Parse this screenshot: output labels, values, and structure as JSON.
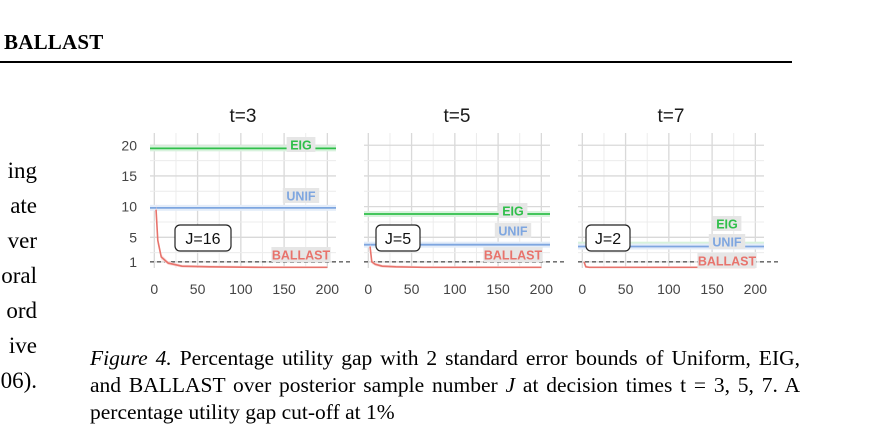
{
  "running_head": "BALLAST",
  "left_column_fragments": [
    "ing",
    "ate",
    "ver",
    "oral",
    "ord",
    "ive",
    "06)."
  ],
  "caption": {
    "label": "Figure 4.",
    "line1": "Percentage utility gap with 2 standard error bounds of",
    "line2_a": "Uniform, EIG, and BALLAST over posterior sample number",
    "line2_var": "J",
    "line2_b": "at",
    "line3": "decision times t = 3, 5, 7. A percentage utility gap cut-off at 1%"
  },
  "colors": {
    "eig": "#2fbf4a",
    "unif": "#7ea6e0",
    "ballast": "#e8736c",
    "grid": "#d9d9d9"
  },
  "chart_data": [
    {
      "type": "line",
      "title": "t=3",
      "x": [
        2,
        4,
        8,
        16,
        32,
        64,
        128,
        200
      ],
      "xticks": [
        0,
        50,
        100,
        150,
        200
      ],
      "yticks": [
        1,
        5,
        10,
        15,
        20
      ],
      "xlim": [
        -5,
        210
      ],
      "ylim": [
        0,
        22
      ],
      "reference_line": 1,
      "annotation": "J=16",
      "series": [
        {
          "name": "EIG",
          "values": [
            19.5,
            19.5,
            19.5,
            19.5,
            19.5,
            19.5,
            19.5,
            19.5
          ]
        },
        {
          "name": "UNIF",
          "values": [
            9.8,
            9.8,
            9.8,
            9.8,
            9.8,
            9.8,
            9.8,
            9.8
          ]
        },
        {
          "name": "BALLAST",
          "values": [
            9.5,
            4.5,
            1.8,
            0.8,
            0.3,
            0.2,
            0.1,
            0.1
          ]
        }
      ]
    },
    {
      "type": "line",
      "title": "t=5",
      "x": [
        2,
        4,
        8,
        16,
        32,
        64,
        128,
        200
      ],
      "xticks": [
        0,
        50,
        100,
        150,
        200
      ],
      "yticks": [
        1,
        5,
        10,
        15,
        20
      ],
      "xlim": [
        -5,
        210
      ],
      "ylim": [
        0,
        22
      ],
      "reference_line": 1,
      "annotation": "J=5",
      "series": [
        {
          "name": "EIG",
          "values": [
            8.8,
            8.8,
            8.8,
            8.8,
            8.8,
            8.8,
            8.8,
            8.8
          ]
        },
        {
          "name": "UNIF",
          "values": [
            3.8,
            3.8,
            3.8,
            3.8,
            3.8,
            3.8,
            3.8,
            3.8
          ]
        },
        {
          "name": "BALLAST",
          "values": [
            3.5,
            1.0,
            0.6,
            0.3,
            0.2,
            0.1,
            0.1,
            0.1
          ]
        }
      ]
    },
    {
      "type": "line",
      "title": "t=7",
      "x": [
        2,
        4,
        8,
        16,
        32,
        64,
        128,
        200
      ],
      "xticks": [
        0,
        50,
        100,
        150,
        200
      ],
      "yticks": [
        1,
        5,
        10,
        15,
        20
      ],
      "xlim": [
        -5,
        210
      ],
      "ylim": [
        0,
        22
      ],
      "reference_line": 1,
      "annotation": "J=2",
      "series": [
        {
          "name": "EIG",
          "values": [
            3.8,
            3.8,
            3.8,
            3.8,
            3.8,
            3.8,
            3.8,
            3.8
          ]
        },
        {
          "name": "UNIF",
          "values": [
            3.5,
            3.5,
            3.5,
            3.5,
            3.5,
            3.5,
            3.5,
            3.5
          ]
        },
        {
          "name": "BALLAST",
          "values": [
            1.0,
            0.2,
            0.1,
            0.1,
            0.1,
            0.1,
            0.1,
            0.1
          ]
        }
      ]
    }
  ]
}
